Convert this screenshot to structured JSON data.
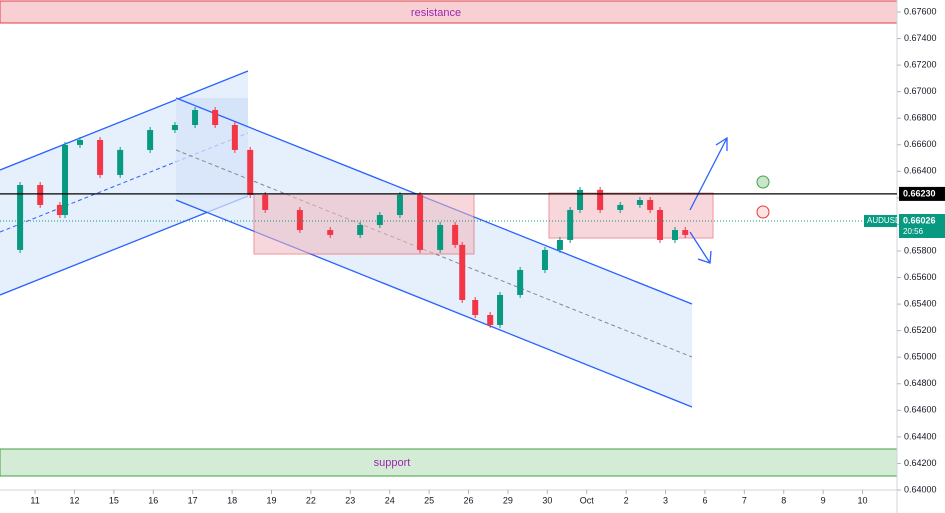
{
  "chart_data": {
    "type": "candlestick",
    "symbol": "AUDUSD",
    "timer": "20:56",
    "zones": {
      "resistance": "resistance",
      "support": "support"
    },
    "hline": {
      "value": 0.6623,
      "label": "0.66230"
    },
    "last_price": {
      "value": 0.66026,
      "label": "0.66026"
    },
    "xlim": [
      -0.89,
      21.95
    ],
    "ylim": [
      0.64,
      0.676
    ],
    "xticks": [
      {
        "value": 0,
        "label": "11"
      },
      {
        "value": 1,
        "label": "12"
      },
      {
        "value": 2,
        "label": "15"
      },
      {
        "value": 3,
        "label": "16"
      },
      {
        "value": 4,
        "label": "17"
      },
      {
        "value": 5,
        "label": "18"
      },
      {
        "value": 6,
        "label": "19"
      },
      {
        "value": 7,
        "label": "22"
      },
      {
        "value": 8,
        "label": "23"
      },
      {
        "value": 9,
        "label": "24"
      },
      {
        "value": 10,
        "label": "25"
      },
      {
        "value": 11,
        "label": "26"
      },
      {
        "value": 12,
        "label": "29"
      },
      {
        "value": 13,
        "label": "30"
      },
      {
        "value": 14,
        "label": "Oct"
      },
      {
        "value": 15,
        "label": "2"
      },
      {
        "value": 16,
        "label": "3"
      },
      {
        "value": 17,
        "label": "6"
      },
      {
        "value": 18,
        "label": "7"
      },
      {
        "value": 19,
        "label": "8"
      },
      {
        "value": 20,
        "label": "9"
      },
      {
        "value": 21,
        "label": "10"
      }
    ],
    "yticks": [
      {
        "value": 0.676,
        "label": "0.67600"
      },
      {
        "value": 0.674,
        "label": "0.67400"
      },
      {
        "value": 0.672,
        "label": "0.67200"
      },
      {
        "value": 0.67,
        "label": "0.67000"
      },
      {
        "value": 0.668,
        "label": "0.66800"
      },
      {
        "value": 0.666,
        "label": "0.66600"
      },
      {
        "value": 0.664,
        "label": "0.66400"
      },
      {
        "value": 0.662,
        "label": "0.66200"
      },
      {
        "value": 0.66,
        "label": "0.66000"
      },
      {
        "value": 0.658,
        "label": "0.65800"
      },
      {
        "value": 0.656,
        "label": "0.65600"
      },
      {
        "value": 0.654,
        "label": "0.65400"
      },
      {
        "value": 0.652,
        "label": "0.65200"
      },
      {
        "value": 0.65,
        "label": "0.65000"
      },
      {
        "value": 0.648,
        "label": "0.64800"
      },
      {
        "value": 0.646,
        "label": "0.64600"
      },
      {
        "value": 0.644,
        "label": "0.64400"
      },
      {
        "value": 0.642,
        "label": "0.64200"
      },
      {
        "value": 0.64,
        "label": "0.64000"
      }
    ],
    "x": [
      -0.89,
      -0.38,
      0.13,
      0.63,
      0.76,
      1.14,
      1.65,
      2.16,
      2.92,
      3.55,
      4.06,
      4.57,
      5.07,
      5.46,
      5.84,
      6.72,
      7.49,
      8.25,
      8.75,
      9.26,
      9.77,
      10.28,
      10.66,
      10.84,
      11.17,
      11.55,
      11.8,
      12.31,
      12.94,
      13.32,
      13.58,
      13.83,
      14.34,
      14.85,
      15.35,
      15.61,
      15.86,
      16.24,
      16.5
    ],
    "series": [
      {
        "name": "AUDUSD",
        "up_color": "#089981",
        "down_color": "#f23645",
        "values": [
          0.65808,
          0.66297,
          0.66147,
          0.66071,
          0.66599,
          0.66636,
          0.66373,
          0.66561,
          0.66711,
          0.66749,
          0.66862,
          0.66749,
          0.66561,
          0.66222,
          0.66109,
          0.65958,
          0.65921,
          0.65996,
          0.66071,
          0.66222,
          0.65808,
          0.65996,
          0.65846,
          0.65431,
          0.65318,
          0.65243,
          0.65469,
          0.65657,
          0.65808,
          0.65883,
          0.66109,
          0.6626,
          0.66109,
          0.66147,
          0.66184,
          0.66109,
          0.65883,
          0.65958,
          0.65921
        ]
      }
    ]
  }
}
